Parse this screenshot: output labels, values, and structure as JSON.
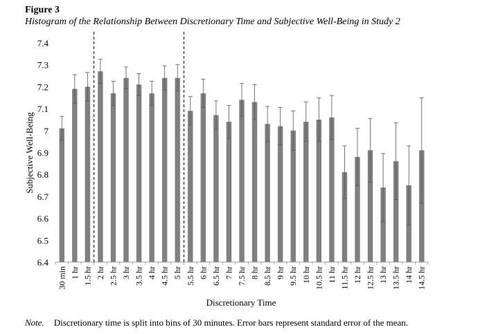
{
  "figure": {
    "label": "Figure 3",
    "title": "Histogram of the Relationship Between Discretionary Time and Subjective Well-Being in Study 2",
    "note_label": "Note.",
    "note_text": "Discretionary time is split into bins of 30 minutes. Error bars represent standard error of the mean."
  },
  "chart_data": {
    "type": "bar",
    "xlabel": "Discretionary Time",
    "ylabel": "Subjective Well-Being",
    "ylim": [
      6.4,
      7.4
    ],
    "yticks": [
      "6.4",
      "6.5",
      "6.6",
      "6.7",
      "6.8",
      "6.9",
      "7",
      "7.1",
      "7.2",
      "7.3",
      "7.4"
    ],
    "grid": false,
    "bar_color": "#7f7f7f",
    "categories": [
      "30 min",
      "1 hr",
      "1.5 hr",
      "2 hr",
      "2.5 hr",
      "3 hr",
      "3.5 hr",
      "4 hr",
      "4.5 hr",
      "5 hr",
      "5.5 hr",
      "6 hr",
      "6.5 hr",
      "7 hr",
      "7.5 hr",
      "8 hr",
      "8.5 hr",
      "9 hr",
      "9.5 hr",
      "10 hr",
      "10.5 hr",
      "11 hr",
      "11.5 hr",
      "12 hr",
      "12.5 hr",
      "13 hr",
      "13.5 hr",
      "14 hr",
      "14.5 hr"
    ],
    "values": [
      7.01,
      7.19,
      7.2,
      7.27,
      7.17,
      7.24,
      7.21,
      7.17,
      7.24,
      7.24,
      7.09,
      7.17,
      7.07,
      7.04,
      7.14,
      7.13,
      7.03,
      7.02,
      7.0,
      7.04,
      7.05,
      7.06,
      6.81,
      6.88,
      6.91,
      6.74,
      6.86,
      6.75,
      6.91
    ],
    "errors": [
      0.055,
      0.065,
      0.065,
      0.055,
      0.055,
      0.05,
      0.05,
      0.055,
      0.055,
      0.06,
      0.065,
      0.065,
      0.065,
      0.075,
      0.075,
      0.08,
      0.08,
      0.085,
      0.09,
      0.09,
      0.1,
      0.1,
      0.12,
      0.13,
      0.145,
      0.155,
      0.175,
      0.18,
      0.24
    ],
    "reference_lines_between": [
      [
        "1.5 hr",
        "2 hr"
      ],
      [
        "5 hr",
        "5.5 hr"
      ]
    ]
  }
}
